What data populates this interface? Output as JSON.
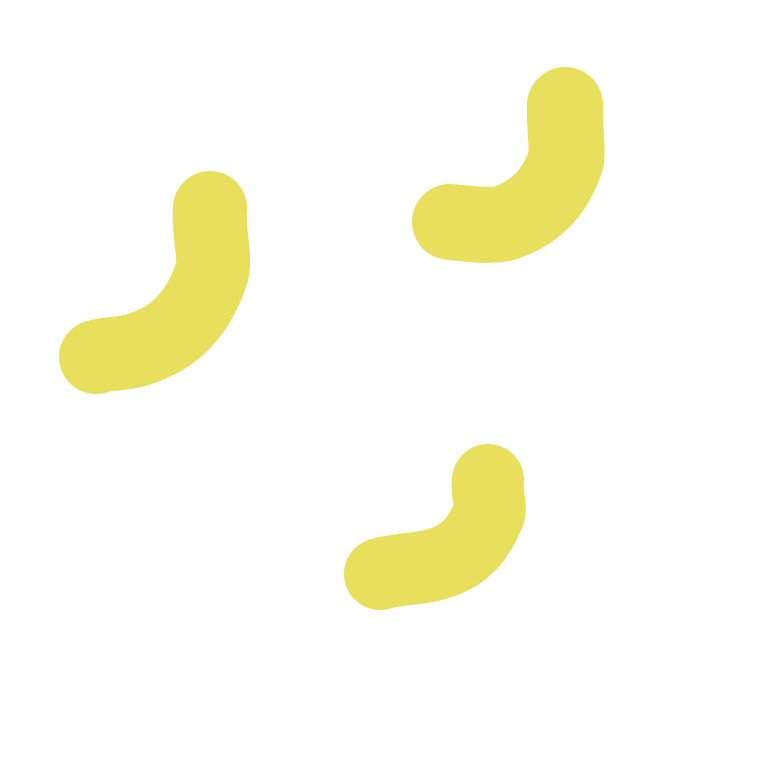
{
  "canvas": {
    "background": "#ffffff"
  },
  "strokes": {
    "color": "#e8df5c",
    "count": 3,
    "shape": "curved-hook"
  }
}
